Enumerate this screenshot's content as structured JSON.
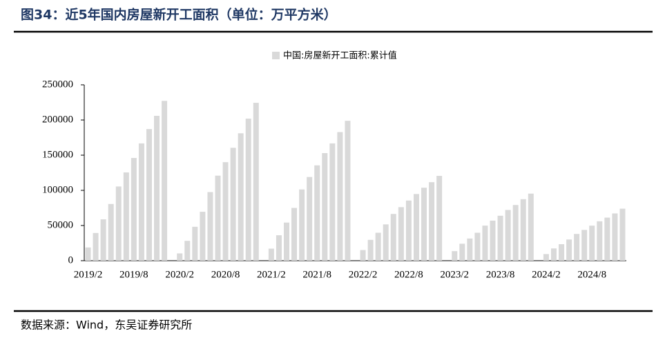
{
  "chart_data": {
    "type": "bar",
    "title": "图34：近5年国内房屋新开工面积（单位：万平方米）",
    "source": "数据来源：Wind，东吴证券研究所",
    "categories": [
      "2019/2",
      null,
      null,
      null,
      null,
      null,
      "2019/8",
      null,
      null,
      null,
      null,
      null,
      "2020/2",
      null,
      null,
      null,
      null,
      null,
      "2020/8",
      null,
      null,
      null,
      null,
      null,
      "2021/2",
      null,
      null,
      null,
      null,
      null,
      "2021/8",
      null,
      null,
      null,
      null,
      null,
      "2022/2",
      null,
      null,
      null,
      null,
      null,
      "2022/8",
      null,
      null,
      null,
      null,
      null,
      "2023/2",
      null,
      null,
      null,
      null,
      null,
      "2023/8",
      null,
      null,
      null,
      null,
      null,
      "2024/2",
      null,
      null,
      null,
      null,
      null,
      "2024/8",
      null,
      null,
      null,
      null
    ],
    "series": [
      {
        "name": "中国:房屋新开工面积:累计值",
        "color": "#d9d9d9",
        "values": [
          18814,
          39394,
          58803,
          80630,
          105509,
          125456,
          146059,
          166717,
          187134,
          205930,
          227154,
          null,
          10370,
          28203,
          48229,
          69533,
          97537,
          120876,
          140073,
          160477,
          181144,
          201960,
          224433,
          null,
          17093,
          36163,
          54220,
          75007,
          101288,
          118948,
          135502,
          152944,
          166736,
          182820,
          198895,
          null,
          15115,
          29638,
          39739,
          51628,
          66423,
          76143,
          85531,
          94767,
          103722,
          111632,
          120587,
          null,
          13567,
          24121,
          31564,
          39723,
          49880,
          56969,
          63891,
          72123,
          79177,
          87456,
          95376,
          null,
          9429,
          17429,
          23509,
          30090,
          38023,
          43731,
          49817,
          55998,
          61227,
          67201,
          73893
        ]
      }
    ],
    "ylim": [
      0,
      250000
    ],
    "yticks": [
      0,
      50000,
      100000,
      150000,
      200000,
      250000
    ],
    "legend": "top"
  }
}
